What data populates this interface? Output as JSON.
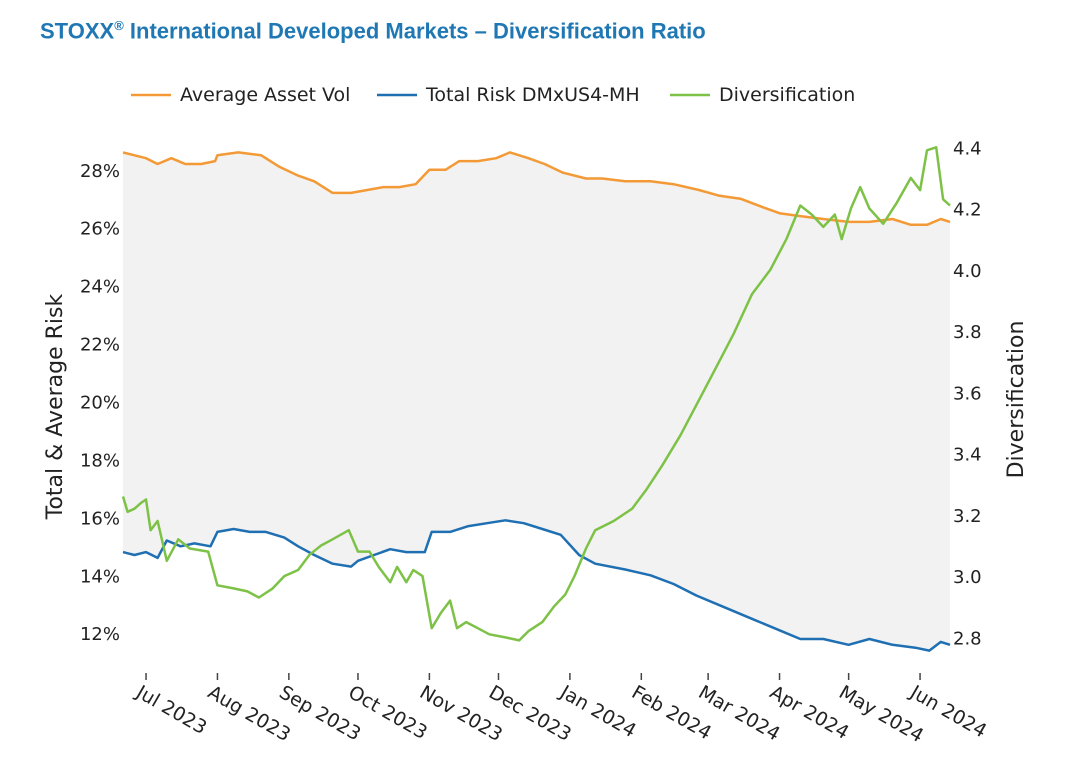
{
  "title": {
    "main": "STOXX",
    "reg": "®",
    "rest": " International Developed Markets – Diversification Ratio"
  },
  "chart_data": {
    "type": "line",
    "title": "STOXX® International Developed Markets – Diversification Ratio",
    "ylabel": "Total & Average Risk",
    "y2label": "Diversification",
    "ylim": [
      10.8,
      29.2
    ],
    "y2lim": [
      2.7,
      4.44
    ],
    "yticks": [
      "12%",
      "14%",
      "16%",
      "18%",
      "20%",
      "22%",
      "24%",
      "26%",
      "28%"
    ],
    "yticks_values": [
      12,
      14,
      16,
      18,
      20,
      22,
      24,
      26,
      28
    ],
    "y2ticks": [
      "2.8",
      "3.0",
      "3.2",
      "3.4",
      "3.6",
      "3.8",
      "4.0",
      "4.2",
      "4.4"
    ],
    "y2ticks_values": [
      2.8,
      3.0,
      3.2,
      3.4,
      3.6,
      3.8,
      4.0,
      4.2,
      4.4
    ],
    "xticks": [
      "Jul 2023",
      "Aug 2023",
      "Sep 2023",
      "Oct 2023",
      "Nov 2023",
      "Dec 2023",
      "Jan 2024",
      "Feb 2024",
      "Mar 2024",
      "Apr 2024",
      "May 2024",
      "Jun 2024"
    ],
    "xticks_dates": [
      "2023-07-01",
      "2023-08-01",
      "2023-09-01",
      "2023-10-01",
      "2023-11-01",
      "2023-12-01",
      "2024-01-01",
      "2024-02-01",
      "2024-03-01",
      "2024-04-01",
      "2024-05-01",
      "2024-06-01"
    ],
    "x_range": [
      "2023-06-21",
      "2024-06-14"
    ],
    "legend_position": "top",
    "fill_between": "Average Asset Vol and Total Risk DMxUS4-MH",
    "series": [
      {
        "name": "Average Asset Vol",
        "axis": "left",
        "color": "#f39a36",
        "points": [
          [
            "2023-06-21",
            28.6
          ],
          [
            "2023-06-26",
            28.5
          ],
          [
            "2023-07-01",
            28.4
          ],
          [
            "2023-07-06",
            28.2
          ],
          [
            "2023-07-12",
            28.4
          ],
          [
            "2023-07-18",
            28.2
          ],
          [
            "2023-07-25",
            28.2
          ],
          [
            "2023-07-31",
            28.3
          ],
          [
            "2023-08-01",
            28.5
          ],
          [
            "2023-08-10",
            28.6
          ],
          [
            "2023-08-20",
            28.5
          ],
          [
            "2023-08-28",
            28.1
          ],
          [
            "2023-09-05",
            27.8
          ],
          [
            "2023-09-12",
            27.6
          ],
          [
            "2023-09-20",
            27.2
          ],
          [
            "2023-09-28",
            27.2
          ],
          [
            "2023-10-05",
            27.3
          ],
          [
            "2023-10-12",
            27.4
          ],
          [
            "2023-10-19",
            27.4
          ],
          [
            "2023-10-26",
            27.5
          ],
          [
            "2023-11-01",
            28.0
          ],
          [
            "2023-11-08",
            28.0
          ],
          [
            "2023-11-14",
            28.3
          ],
          [
            "2023-11-22",
            28.3
          ],
          [
            "2023-11-30",
            28.4
          ],
          [
            "2023-12-06",
            28.6
          ],
          [
            "2023-12-14",
            28.4
          ],
          [
            "2023-12-21",
            28.2
          ],
          [
            "2023-12-29",
            27.9
          ],
          [
            "2024-01-08",
            27.7
          ],
          [
            "2024-01-15",
            27.7
          ],
          [
            "2024-01-25",
            27.6
          ],
          [
            "2024-02-05",
            27.6
          ],
          [
            "2024-02-15",
            27.5
          ],
          [
            "2024-02-26",
            27.3
          ],
          [
            "2024-03-06",
            27.1
          ],
          [
            "2024-03-15",
            27.0
          ],
          [
            "2024-03-25",
            26.7
          ],
          [
            "2024-04-01",
            26.5
          ],
          [
            "2024-04-10",
            26.4
          ],
          [
            "2024-04-20",
            26.3
          ],
          [
            "2024-05-01",
            26.2
          ],
          [
            "2024-05-10",
            26.2
          ],
          [
            "2024-05-20",
            26.3
          ],
          [
            "2024-05-28",
            26.1
          ],
          [
            "2024-06-04",
            26.1
          ],
          [
            "2024-06-10",
            26.3
          ],
          [
            "2024-06-14",
            26.2
          ]
        ]
      },
      {
        "name": "Total Risk DMxUS4-MH",
        "axis": "left",
        "color": "#1f6fb3",
        "points": [
          [
            "2023-06-21",
            14.8
          ],
          [
            "2023-06-26",
            14.7
          ],
          [
            "2023-07-01",
            14.8
          ],
          [
            "2023-07-06",
            14.6
          ],
          [
            "2023-07-10",
            15.2
          ],
          [
            "2023-07-16",
            15.0
          ],
          [
            "2023-07-22",
            15.1
          ],
          [
            "2023-07-29",
            15.0
          ],
          [
            "2023-08-01",
            15.5
          ],
          [
            "2023-08-08",
            15.6
          ],
          [
            "2023-08-15",
            15.5
          ],
          [
            "2023-08-22",
            15.5
          ],
          [
            "2023-08-30",
            15.3
          ],
          [
            "2023-09-05",
            15.0
          ],
          [
            "2023-09-12",
            14.7
          ],
          [
            "2023-09-20",
            14.4
          ],
          [
            "2023-09-28",
            14.3
          ],
          [
            "2023-10-01",
            14.5
          ],
          [
            "2023-10-08",
            14.7
          ],
          [
            "2023-10-15",
            14.9
          ],
          [
            "2023-10-22",
            14.8
          ],
          [
            "2023-10-30",
            14.8
          ],
          [
            "2023-11-02",
            15.5
          ],
          [
            "2023-11-10",
            15.5
          ],
          [
            "2023-11-18",
            15.7
          ],
          [
            "2023-11-26",
            15.8
          ],
          [
            "2023-12-04",
            15.9
          ],
          [
            "2023-12-12",
            15.8
          ],
          [
            "2023-12-20",
            15.6
          ],
          [
            "2023-12-28",
            15.4
          ],
          [
            "2024-01-05",
            14.7
          ],
          [
            "2024-01-12",
            14.4
          ],
          [
            "2024-01-25",
            14.2
          ],
          [
            "2024-02-05",
            14.0
          ],
          [
            "2024-02-15",
            13.7
          ],
          [
            "2024-02-25",
            13.3
          ],
          [
            "2024-03-08",
            12.9
          ],
          [
            "2024-03-20",
            12.5
          ],
          [
            "2024-04-01",
            12.1
          ],
          [
            "2024-04-10",
            11.8
          ],
          [
            "2024-04-20",
            11.8
          ],
          [
            "2024-05-01",
            11.6
          ],
          [
            "2024-05-10",
            11.8
          ],
          [
            "2024-05-20",
            11.6
          ],
          [
            "2024-05-30",
            11.5
          ],
          [
            "2024-06-05",
            11.4
          ],
          [
            "2024-06-10",
            11.7
          ],
          [
            "2024-06-14",
            11.6
          ]
        ]
      },
      {
        "name": "Diversification",
        "axis": "right",
        "color": "#7dc247",
        "points": [
          [
            "2023-06-21",
            3.26
          ],
          [
            "2023-06-23",
            3.21
          ],
          [
            "2023-06-26",
            3.22
          ],
          [
            "2023-06-29",
            3.24
          ],
          [
            "2023-07-01",
            3.25
          ],
          [
            "2023-07-03",
            3.15
          ],
          [
            "2023-07-06",
            3.18
          ],
          [
            "2023-07-10",
            3.05
          ],
          [
            "2023-07-15",
            3.12
          ],
          [
            "2023-07-20",
            3.09
          ],
          [
            "2023-07-28",
            3.08
          ],
          [
            "2023-08-01",
            2.97
          ],
          [
            "2023-08-08",
            2.96
          ],
          [
            "2023-08-14",
            2.95
          ],
          [
            "2023-08-19",
            2.93
          ],
          [
            "2023-08-25",
            2.96
          ],
          [
            "2023-08-30",
            3.0
          ],
          [
            "2023-09-05",
            3.02
          ],
          [
            "2023-09-10",
            3.07
          ],
          [
            "2023-09-15",
            3.1
          ],
          [
            "2023-09-20",
            3.12
          ],
          [
            "2023-09-27",
            3.15
          ],
          [
            "2023-10-01",
            3.08
          ],
          [
            "2023-10-06",
            3.08
          ],
          [
            "2023-10-10",
            3.03
          ],
          [
            "2023-10-15",
            2.98
          ],
          [
            "2023-10-18",
            3.03
          ],
          [
            "2023-10-22",
            2.98
          ],
          [
            "2023-10-25",
            3.02
          ],
          [
            "2023-10-29",
            3.0
          ],
          [
            "2023-11-02",
            2.83
          ],
          [
            "2023-11-06",
            2.88
          ],
          [
            "2023-11-10",
            2.92
          ],
          [
            "2023-11-13",
            2.83
          ],
          [
            "2023-11-17",
            2.85
          ],
          [
            "2023-11-22",
            2.83
          ],
          [
            "2023-11-27",
            2.81
          ],
          [
            "2023-12-04",
            2.8
          ],
          [
            "2023-12-10",
            2.79
          ],
          [
            "2023-12-14",
            2.82
          ],
          [
            "2023-12-20",
            2.85
          ],
          [
            "2023-12-25",
            2.9
          ],
          [
            "2023-12-30",
            2.94
          ],
          [
            "2024-01-03",
            3.0
          ],
          [
            "2024-01-08",
            3.09
          ],
          [
            "2024-01-12",
            3.15
          ],
          [
            "2024-01-20",
            3.18
          ],
          [
            "2024-01-28",
            3.22
          ],
          [
            "2024-02-03",
            3.28
          ],
          [
            "2024-02-10",
            3.36
          ],
          [
            "2024-02-18",
            3.46
          ],
          [
            "2024-02-25",
            3.56
          ],
          [
            "2024-03-03",
            3.66
          ],
          [
            "2024-03-12",
            3.79
          ],
          [
            "2024-03-20",
            3.92
          ],
          [
            "2024-03-28",
            4.0
          ],
          [
            "2024-04-04",
            4.1
          ],
          [
            "2024-04-10",
            4.21
          ],
          [
            "2024-04-15",
            4.18
          ],
          [
            "2024-04-20",
            4.14
          ],
          [
            "2024-04-25",
            4.18
          ],
          [
            "2024-04-28",
            4.1
          ],
          [
            "2024-05-02",
            4.2
          ],
          [
            "2024-05-06",
            4.27
          ],
          [
            "2024-05-10",
            4.2
          ],
          [
            "2024-05-16",
            4.15
          ],
          [
            "2024-05-22",
            4.22
          ],
          [
            "2024-05-28",
            4.3
          ],
          [
            "2024-06-01",
            4.26
          ],
          [
            "2024-06-04",
            4.39
          ],
          [
            "2024-06-08",
            4.4
          ],
          [
            "2024-06-11",
            4.23
          ],
          [
            "2024-06-14",
            4.21
          ]
        ]
      }
    ]
  }
}
